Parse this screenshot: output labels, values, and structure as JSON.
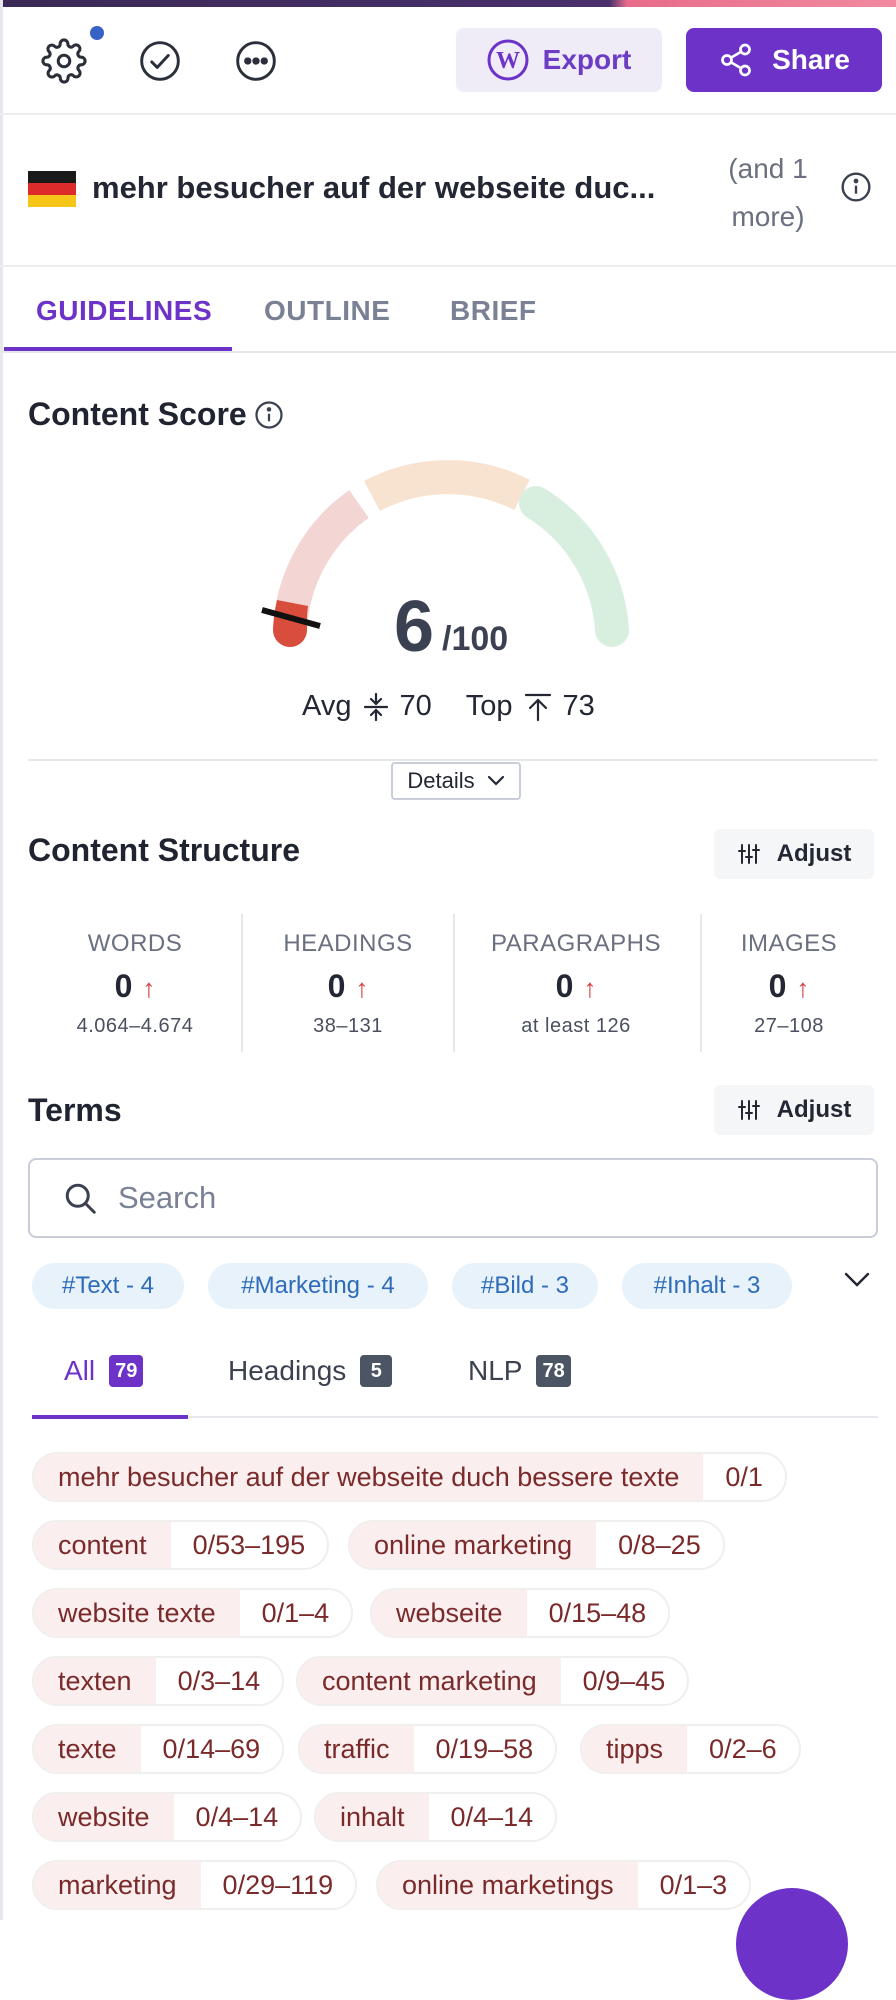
{
  "toolbar": {
    "export_label": "Export",
    "share_label": "Share"
  },
  "keyword": {
    "title": "mehr besucher auf der webseite duc...",
    "more": "(and 1 more)"
  },
  "tabs": [
    {
      "label": "GUIDELINES",
      "active": true
    },
    {
      "label": "OUTLINE",
      "active": false
    },
    {
      "label": "BRIEF",
      "active": false
    }
  ],
  "content_score": {
    "title": "Content Score",
    "score": "6",
    "max": "/100",
    "avg_label": "Avg",
    "avg_value": "70",
    "top_label": "Top",
    "top_value": "73",
    "details_label": "Details"
  },
  "content_structure": {
    "title": "Content Structure",
    "adjust_label": "Adjust",
    "metrics": [
      {
        "label": "WORDS",
        "value": "0",
        "range": "4.064–4.674"
      },
      {
        "label": "HEADINGS",
        "value": "0",
        "range": "38–131"
      },
      {
        "label": "PARAGRAPHS",
        "value": "0",
        "range": "at least 126"
      },
      {
        "label": "IMAGES",
        "value": "0",
        "range": "27–108"
      }
    ]
  },
  "terms": {
    "title": "Terms",
    "adjust_label": "Adjust",
    "search_placeholder": "Search",
    "tags": [
      "#Text - 4",
      "#Marketing - 4",
      "#Bild - 3",
      "#Inhalt - 3"
    ],
    "filter_tabs": [
      {
        "label": "All",
        "count": "79",
        "active": true
      },
      {
        "label": "Headings",
        "count": "5",
        "active": false
      },
      {
        "label": "NLP",
        "count": "78",
        "active": false
      }
    ],
    "chips": [
      {
        "term": "mehr besucher auf der webseite duch bessere texte",
        "count": "0/1"
      },
      {
        "term": "content",
        "count": "0/53–195"
      },
      {
        "term": "online marketing",
        "count": "0/8–25"
      },
      {
        "term": "website texte",
        "count": "0/1–4"
      },
      {
        "term": "webseite",
        "count": "0/15–48"
      },
      {
        "term": "texten",
        "count": "0/3–14"
      },
      {
        "term": "content marketing",
        "count": "0/9–45"
      },
      {
        "term": "texte",
        "count": "0/14–69"
      },
      {
        "term": "traffic",
        "count": "0/19–58"
      },
      {
        "term": "tipps",
        "count": "0/2–6"
      },
      {
        "term": "website",
        "count": "0/4–14"
      },
      {
        "term": "inhalt",
        "count": "0/4–14"
      },
      {
        "term": "marketing",
        "count": "0/29–119"
      },
      {
        "term": "online marketings",
        "count": "0/1–3"
      }
    ]
  },
  "colors": {
    "accent": "#6d33c9",
    "gauge_low": "#f3d6d4",
    "gauge_mid": "#f8e3d0",
    "gauge_high": "#d8efe0",
    "gauge_marker": "#d94d3d",
    "up_arrow": "#d23c3c",
    "tag_bg": "#e8f2fb",
    "chip_bg": "#fbeeee"
  },
  "icons": [
    "gear-icon",
    "check-circle-icon",
    "more-dots-icon",
    "wordpress-icon",
    "share-icon",
    "info-icon",
    "chevron-down-icon",
    "sliders-icon",
    "search-icon",
    "arrow-up-icon"
  ]
}
